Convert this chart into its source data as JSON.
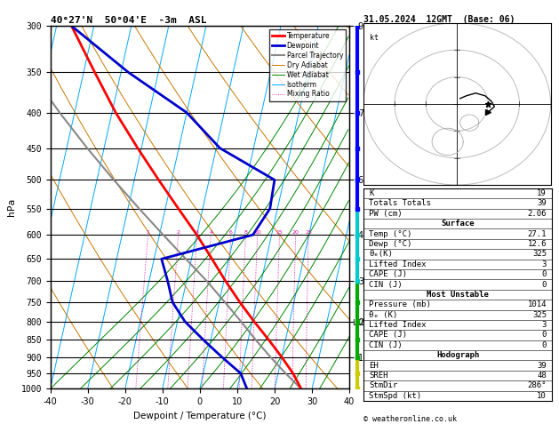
{
  "title_left": "40°27'N  50°04'E  -3m  ASL",
  "title_right": "31.05.2024  12GMT  (Base: 06)",
  "xlabel": "Dewpoint / Temperature (°C)",
  "pressure_levels": [
    300,
    350,
    400,
    450,
    500,
    550,
    600,
    650,
    700,
    750,
    800,
    850,
    900,
    950,
    1000
  ],
  "skew_factor": 18.0,
  "temperature_profile": {
    "pressure": [
      1000,
      950,
      900,
      850,
      800,
      750,
      700,
      650,
      600,
      550,
      500,
      450,
      400,
      350,
      300
    ],
    "temp": [
      27.1,
      24.0,
      20.0,
      15.5,
      10.5,
      5.5,
      0.5,
      -4.5,
      -10.0,
      -16.5,
      -23.5,
      -31.0,
      -39.0,
      -47.0,
      -56.0
    ],
    "dewp": [
      12.6,
      10.0,
      4.0,
      -2.0,
      -8.0,
      -12.5,
      -15.0,
      -18.0,
      5.0,
      8.0,
      7.5,
      -9.0,
      -20.0,
      -38.0,
      -56.0
    ]
  },
  "parcel_profile": {
    "pressure": [
      1000,
      950,
      900,
      850,
      800,
      750,
      700,
      650,
      600,
      550,
      500,
      450,
      400,
      350,
      300
    ],
    "temp": [
      27.1,
      22.0,
      17.0,
      12.0,
      7.0,
      1.5,
      -4.5,
      -11.5,
      -19.0,
      -27.0,
      -35.5,
      -44.5,
      -54.0,
      -64.0,
      -75.0
    ]
  },
  "mixing_ratio_lines": [
    1,
    2,
    3,
    4,
    6,
    8,
    10,
    15,
    20,
    25
  ],
  "info": {
    "K": "19",
    "Totals_Totals": "39",
    "PW_cm": "2.06",
    "surface_temp": "27.1",
    "surface_dewp": "12.6",
    "surface_theta_e": "325",
    "surface_li": "3",
    "surface_cape": "0",
    "surface_cin": "0",
    "mu_pressure": "1014",
    "mu_theta_e": "325",
    "mu_li": "3",
    "mu_cape": "0",
    "mu_cin": "0",
    "EH": "39",
    "SREH": "48",
    "StmDir": "286°",
    "StmSpd": "10"
  },
  "lcl_pressure": 803,
  "colors": {
    "temperature": "#ff0000",
    "dewpoint": "#0000cc",
    "parcel": "#888888",
    "dry_adiabat": "#cc7700",
    "wet_adiabat": "#008800",
    "isotherm": "#00aaff",
    "mixing_ratio": "#dd00aa"
  },
  "wind_profile": {
    "pressures": [
      1000,
      950,
      900,
      850,
      800,
      750,
      700,
      650,
      600,
      550,
      500,
      450,
      400,
      350,
      300
    ],
    "colors": [
      "#cccc00",
      "#cccc00",
      "#00aa00",
      "#00aa00",
      "#00aa00",
      "#00aa00",
      "#00cccc",
      "#00cccc",
      "#00cccc",
      "#0000ff",
      "#0000ff",
      "#0000ff",
      "#0000ff",
      "#0000ff",
      "#0000ff"
    ]
  }
}
